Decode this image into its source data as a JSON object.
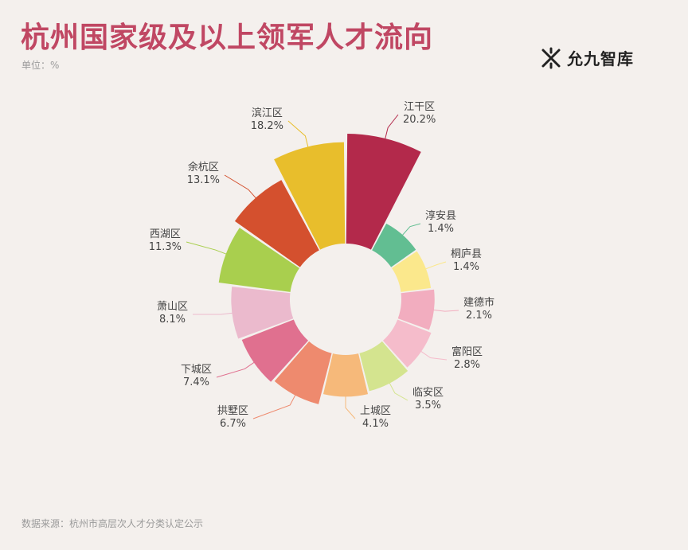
{
  "title": "杭州国家级及以上领军人才流向",
  "unit": "单位：%",
  "brand": {
    "name": "允九智库",
    "icon": "logo-icon"
  },
  "source": "数据来源：杭州市高层次人才分类认定公示",
  "chart_data": {
    "type": "pie",
    "style": "rose-donut",
    "title": "杭州国家级及以上领军人才流向",
    "categories": [
      "江干区",
      "淳安县",
      "桐庐县",
      "建德市",
      "富阳区",
      "临安区",
      "上城区",
      "拱墅区",
      "下城区",
      "萧山区",
      "西湖区",
      "余杭区",
      "滨江区"
    ],
    "values": [
      20.2,
      1.4,
      1.4,
      2.1,
      2.8,
      3.5,
      4.1,
      6.7,
      7.4,
      8.1,
      11.3,
      13.1,
      18.2
    ],
    "value_labels": [
      "20.2%",
      "1.4%",
      "1.4%",
      "2.1%",
      "2.8%",
      "3.5%",
      "4.1%",
      "6.7%",
      "7.4%",
      "8.1%",
      "11.3%",
      "13.1%",
      "18.2%"
    ],
    "colors": [
      "#b3294b",
      "#62be92",
      "#fbe88c",
      "#f2adbf",
      "#f5bccb",
      "#d4e48f",
      "#f6b97a",
      "#ee8a6e",
      "#e0708f",
      "#ebbacd",
      "#a9cf4e",
      "#d4502e",
      "#e8be2c"
    ]
  }
}
